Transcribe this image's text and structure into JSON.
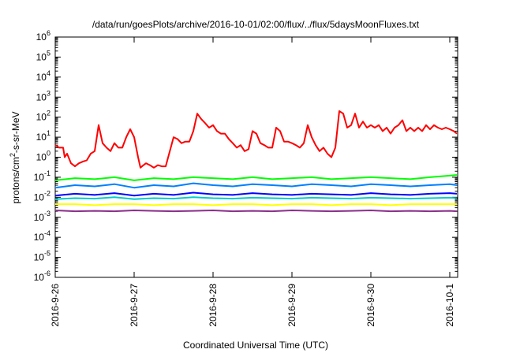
{
  "chart_data": {
    "type": "line",
    "title": "/data/run/goesPlots/archive/2016-10-01/02:00/flux/../flux/5daysMoonFluxes.txt",
    "xlabel": "Coordinated Universal Time (UTC)",
    "ylabel_parts": {
      "base": "protons/cm",
      "sup": "2",
      "rest": "-s-sr-MeV"
    },
    "y_scale": "log",
    "ylim_exp": [
      -6,
      6
    ],
    "xlim_days": [
      "2016-9-26",
      "2016-10-1"
    ],
    "x_tick_labels": [
      "2016-9-26",
      "2016-9-27",
      "2016-9-28",
      "2016-9-29",
      "2016-9-30",
      "2016-10-1"
    ],
    "grid": false,
    "legend": "none",
    "series": [
      {
        "color": "#ff0000",
        "note_x": "days after 2016-9-26",
        "x": [
          0.0,
          0.05,
          0.1,
          0.12,
          0.15,
          0.2,
          0.25,
          0.3,
          0.35,
          0.4,
          0.45,
          0.5,
          0.55,
          0.6,
          0.65,
          0.7,
          0.75,
          0.8,
          0.85,
          0.9,
          0.95,
          1.0,
          1.05,
          1.08,
          1.1,
          1.15,
          1.2,
          1.25,
          1.3,
          1.35,
          1.4,
          1.5,
          1.55,
          1.6,
          1.65,
          1.7,
          1.75,
          1.8,
          1.85,
          1.9,
          1.95,
          2.0,
          2.05,
          2.1,
          2.15,
          2.2,
          2.25,
          2.3,
          2.35,
          2.4,
          2.45,
          2.5,
          2.55,
          2.6,
          2.65,
          2.7,
          2.75,
          2.8,
          2.85,
          2.9,
          2.95,
          3.0,
          3.05,
          3.1,
          3.15,
          3.2,
          3.25,
          3.3,
          3.35,
          3.4,
          3.45,
          3.5,
          3.55,
          3.6,
          3.65,
          3.7,
          3.75,
          3.8,
          3.85,
          3.9,
          3.95,
          4.0,
          4.05,
          4.1,
          4.15,
          4.2,
          4.25,
          4.3,
          4.35,
          4.4,
          4.45,
          4.5,
          4.55,
          4.6,
          4.65,
          4.7,
          4.75,
          4.8,
          4.85,
          4.9,
          4.95,
          5.0,
          5.05,
          5.09
        ],
        "y": [
          4,
          3,
          3,
          1,
          1.5,
          0.5,
          0.35,
          0.5,
          0.6,
          0.7,
          1.5,
          2,
          40,
          5,
          3,
          2,
          5,
          3,
          3,
          10,
          25,
          10,
          1,
          0.3,
          0.35,
          0.5,
          0.4,
          0.3,
          0.4,
          0.35,
          0.35,
          10,
          8,
          5,
          6,
          6,
          20,
          150,
          80,
          50,
          30,
          40,
          20,
          15,
          15,
          8,
          5,
          3,
          4,
          2,
          2.5,
          20,
          15,
          5,
          4,
          3,
          3,
          30,
          20,
          6,
          6,
          5,
          4,
          3,
          5,
          40,
          10,
          4,
          2,
          3,
          1.5,
          1,
          3,
          200,
          150,
          30,
          40,
          150,
          30,
          60,
          30,
          40,
          30,
          40,
          20,
          30,
          15,
          30,
          40,
          70,
          20,
          30,
          20,
          30,
          20,
          40,
          25,
          40,
          30,
          25,
          30,
          25,
          20,
          15
        ]
      },
      {
        "color": "#00ff00",
        "x": [
          0,
          0.25,
          0.5,
          0.75,
          1,
          1.25,
          1.5,
          1.75,
          2,
          2.25,
          2.5,
          2.75,
          3,
          3.25,
          3.5,
          3.75,
          4,
          4.25,
          4.5,
          4.75,
          5,
          5.09
        ],
        "y": [
          0.07,
          0.09,
          0.08,
          0.1,
          0.07,
          0.09,
          0.08,
          0.1,
          0.09,
          0.08,
          0.1,
          0.08,
          0.09,
          0.1,
          0.08,
          0.09,
          0.1,
          0.09,
          0.08,
          0.1,
          0.12,
          0.13
        ]
      },
      {
        "color": "#0080ff",
        "x": [
          0,
          0.25,
          0.5,
          0.75,
          1,
          1.25,
          1.5,
          1.75,
          2,
          2.25,
          2.5,
          2.75,
          3,
          3.25,
          3.5,
          3.75,
          4,
          4.25,
          4.5,
          4.75,
          5,
          5.09
        ],
        "y": [
          0.03,
          0.04,
          0.035,
          0.045,
          0.03,
          0.04,
          0.035,
          0.05,
          0.04,
          0.035,
          0.045,
          0.04,
          0.035,
          0.045,
          0.04,
          0.035,
          0.045,
          0.04,
          0.035,
          0.04,
          0.045,
          0.04
        ]
      },
      {
        "color": "#0000ff",
        "x": [
          0,
          0.25,
          0.5,
          0.75,
          1,
          1.25,
          1.5,
          1.75,
          2,
          2.25,
          2.5,
          2.75,
          3,
          3.25,
          3.5,
          3.75,
          4,
          4.25,
          4.5,
          4.75,
          5,
          5.09
        ],
        "y": [
          0.012,
          0.015,
          0.013,
          0.016,
          0.012,
          0.015,
          0.013,
          0.017,
          0.014,
          0.013,
          0.016,
          0.014,
          0.013,
          0.015,
          0.014,
          0.013,
          0.016,
          0.014,
          0.013,
          0.015,
          0.016,
          0.015
        ]
      },
      {
        "color": "#00cccc",
        "x": [
          0,
          0.25,
          0.5,
          0.75,
          1,
          1.25,
          1.5,
          1.75,
          2,
          2.25,
          2.5,
          2.75,
          3,
          3.25,
          3.5,
          3.75,
          4,
          4.25,
          4.5,
          4.75,
          5,
          5.09
        ],
        "y": [
          0.008,
          0.009,
          0.0085,
          0.01,
          0.008,
          0.009,
          0.0085,
          0.01,
          0.009,
          0.0085,
          0.0095,
          0.009,
          0.0085,
          0.0095,
          0.009,
          0.0085,
          0.0095,
          0.009,
          0.0085,
          0.009,
          0.0095,
          0.009
        ]
      },
      {
        "color": "#ffff00",
        "x": [
          0,
          0.25,
          0.5,
          0.75,
          1,
          1.25,
          1.5,
          1.75,
          2,
          2.25,
          2.5,
          2.75,
          3,
          3.25,
          3.5,
          3.75,
          4,
          4.25,
          4.5,
          4.75,
          5,
          5.09
        ],
        "y": [
          0.0045,
          0.0045,
          0.004,
          0.0045,
          0.0045,
          0.004,
          0.0045,
          0.0045,
          0.004,
          0.0045,
          0.0045,
          0.004,
          0.0045,
          0.0045,
          0.004,
          0.0045,
          0.0045,
          0.004,
          0.0045,
          0.0045,
          0.0045,
          0.0045
        ]
      },
      {
        "color": "#8b2f8b",
        "x": [
          0,
          0.25,
          0.5,
          0.75,
          1,
          1.25,
          1.5,
          1.75,
          2,
          2.25,
          2.5,
          2.75,
          3,
          3.25,
          3.5,
          3.75,
          4,
          4.25,
          4.5,
          4.75,
          5,
          5.09
        ],
        "y": [
          0.0022,
          0.002,
          0.0021,
          0.002,
          0.0022,
          0.0021,
          0.002,
          0.0021,
          0.0022,
          0.002,
          0.0021,
          0.002,
          0.0022,
          0.0021,
          0.002,
          0.0021,
          0.0022,
          0.002,
          0.0021,
          0.002,
          0.0021,
          0.002
        ]
      }
    ]
  }
}
